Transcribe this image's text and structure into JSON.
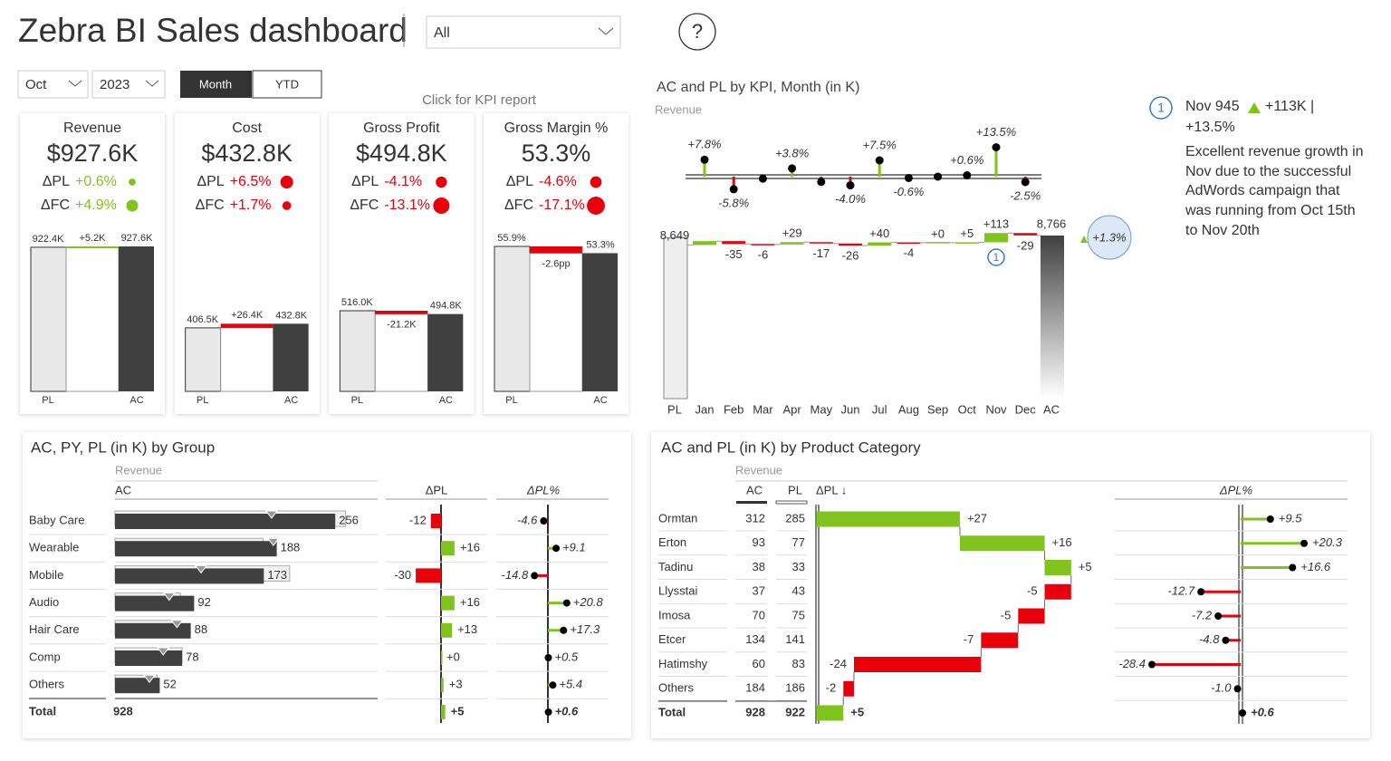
{
  "header": {
    "title": "Zebra BI Sales dashboard",
    "selector": "All",
    "help": "?"
  },
  "filters": {
    "month": "Oct",
    "year": "2023",
    "buttons": [
      "Month",
      "YTD"
    ],
    "kpi_link": "Click for KPI report"
  },
  "colors": {
    "positive": "#7fc31c",
    "negative": "#e8000b",
    "ac": "#404040",
    "pl": "#e8e8e8"
  },
  "kpi_cards": [
    {
      "title": "Revenue",
      "value": "$927.6K",
      "deltas": [
        {
          "label": "ΔPL",
          "value": "+0.6%",
          "color": "#7fc31c"
        },
        {
          "label": "ΔFC",
          "value": "+4.9%",
          "color": "#7fc31c"
        }
      ],
      "chart": {
        "type": "waterfall",
        "categories": [
          "PL",
          null,
          "AC"
        ],
        "values": [
          922.4,
          5.2,
          927.6
        ],
        "value_labels": [
          "922.4K",
          "+5.2K",
          "927.6K"
        ],
        "delta_color": "#7fc31c"
      }
    },
    {
      "title": "Cost",
      "value": "$432.8K",
      "deltas": [
        {
          "label": "ΔPL",
          "value": "+6.5%",
          "color": "#e8000b"
        },
        {
          "label": "ΔFC",
          "value": "+1.7%",
          "color": "#e8000b"
        }
      ],
      "chart": {
        "type": "waterfall",
        "categories": [
          "PL",
          null,
          "AC"
        ],
        "values": [
          406.5,
          26.4,
          432.8
        ],
        "value_labels": [
          "406.5K",
          "+26.4K",
          "432.8K"
        ],
        "delta_color": "#e8000b"
      }
    },
    {
      "title": "Gross Profit",
      "value": "$494.8K",
      "deltas": [
        {
          "label": "ΔPL",
          "value": "-4.1%",
          "color": "#e8000b"
        },
        {
          "label": "ΔFC",
          "value": "-13.1%",
          "color": "#e8000b"
        }
      ],
      "chart": {
        "type": "waterfall",
        "categories": [
          "PL",
          null,
          "AC"
        ],
        "values": [
          516.0,
          -21.2,
          494.8
        ],
        "value_labels": [
          "516.0K",
          "-21.2K",
          "494.8K"
        ],
        "delta_color": "#e8000b"
      }
    },
    {
      "title": "Gross Margin %",
      "value": "53.3%",
      "deltas": [
        {
          "label": "ΔPL",
          "value": "-4.6%",
          "color": "#e8000b"
        },
        {
          "label": "ΔFC",
          "value": "-17.1%",
          "color": "#e8000b"
        }
      ],
      "chart": {
        "type": "waterfall",
        "categories": [
          "PL",
          null,
          "AC"
        ],
        "values": [
          55.9,
          -2.6,
          53.3
        ],
        "value_labels": [
          "55.9%",
          "-2.6pp",
          "53.3%"
        ],
        "delta_color": "#e8000b"
      }
    }
  ],
  "chart_data": [
    {
      "type": "waterfall",
      "title": "AC and PL by KPI, Month (in K)",
      "subtitle": "Revenue",
      "categories": [
        "PL",
        "Jan",
        "Feb",
        "Mar",
        "Apr",
        "May",
        "Jun",
        "Jul",
        "Aug",
        "Sep",
        "Oct",
        "Nov",
        "Dec",
        "AC"
      ],
      "values": [
        8649,
        47,
        -35,
        -6,
        29,
        -17,
        -26,
        40,
        -4,
        0,
        5,
        113,
        -29,
        8766
      ],
      "value_labels": [
        "8,649",
        null,
        "-35",
        "-6",
        "+29",
        "-17",
        "-26",
        "+40",
        "-4",
        "+0",
        "+5",
        "+113",
        "-29",
        "8,766"
      ],
      "deviation": {
        "values": [
          null,
          7.8,
          -5.8,
          -0.9,
          3.8,
          -2.4,
          -4.0,
          7.5,
          -0.6,
          0.0,
          0.6,
          13.5,
          -2.5,
          null
        ],
        "value_labels": [
          null,
          "+7.8%",
          "-5.8%",
          null,
          "+3.8%",
          null,
          "-4.0%",
          "+7.5%",
          "-0.6%",
          null,
          "+0.6%",
          "+13.5%",
          "-2.5%",
          null
        ]
      },
      "total_deviation": {
        "value": 1.3,
        "label": "+1.3%"
      },
      "annotations": [
        {
          "category": "Nov",
          "label": "1"
        }
      ]
    },
    {
      "type": "bar-table",
      "title": "AC, PY, PL (in K) by Group",
      "subtitle": "Revenue",
      "columns": [
        "AC",
        "ΔPL",
        "ΔPL%"
      ],
      "categories": [
        "Baby Care",
        "Wearable",
        "Mobile",
        "Audio",
        "Hair Care",
        "Comp",
        "Others"
      ],
      "ac": {
        "values": [
          256,
          188,
          173,
          92,
          88,
          78,
          52
        ]
      },
      "pl": {
        "values": [
          268,
          172,
          203,
          76,
          75,
          78,
          49
        ]
      },
      "py": {
        "values": [
          182,
          184,
          100,
          63,
          72,
          56,
          40
        ]
      },
      "delta_pl": {
        "values": [
          -12,
          16,
          -30,
          16,
          13,
          0,
          3
        ],
        "value_labels": [
          "-12",
          "+16",
          "-30",
          "+16",
          "+13",
          "+0",
          "+3"
        ]
      },
      "delta_pl_pct": {
        "values": [
          -4.6,
          9.1,
          -14.8,
          20.8,
          17.3,
          0.5,
          5.4
        ],
        "value_labels": [
          "-4.6",
          "+9.1",
          "-14.8",
          "+20.8",
          "+17.3",
          "+0.5",
          "+5.4"
        ]
      },
      "total": {
        "label": "Total",
        "ac": 928,
        "delta_pl": 5,
        "delta_pl_label": "+5",
        "delta_pl_pct": 0.6,
        "delta_pl_pct_label": "+0.6"
      }
    },
    {
      "type": "waterfall-table",
      "title": "AC and PL (in K) by Product Category",
      "subtitle": "Revenue",
      "columns": [
        "AC",
        "PL",
        "ΔPL ↓",
        "ΔPL%"
      ],
      "categories": [
        "Ormtan",
        "Erton",
        "Tadinu",
        "Llysstai",
        "Imosa",
        "Etcer",
        "Hatimshy",
        "Others"
      ],
      "ac": {
        "values": [
          312,
          93,
          38,
          37,
          70,
          134,
          60,
          184
        ]
      },
      "pl": {
        "values": [
          285,
          77,
          33,
          43,
          75,
          141,
          83,
          186
        ]
      },
      "delta_pl": {
        "values": [
          27,
          16,
          5,
          -5,
          -5,
          -7,
          -24,
          -2
        ],
        "value_labels": [
          "+27",
          "+16",
          "+5",
          "-5",
          "-5",
          "-7",
          "-24",
          "-2"
        ]
      },
      "delta_pl_pct": {
        "values": [
          9.5,
          20.3,
          16.6,
          -12.7,
          -7.2,
          -4.8,
          -28.4,
          -1.0
        ],
        "value_labels": [
          "+9.5",
          "+20.3",
          "+16.6",
          "-12.7",
          "-7.2",
          "-4.8",
          "-28.4",
          "-1.0"
        ]
      },
      "total": {
        "label": "Total",
        "ac": 928,
        "pl": 922,
        "delta_pl": 5,
        "delta_pl_label": "+5",
        "delta_pl_pct": 0.6,
        "delta_pl_pct_label": "+0.6"
      }
    }
  ],
  "annotation": {
    "marker": "1",
    "headline": "Nov 945",
    "change": "+113K |",
    "change_pct": "+13.5%",
    "text": "Excellent revenue growth in Nov due to the successful AdWords campaign that was running from Oct 15th to Nov 20th"
  }
}
